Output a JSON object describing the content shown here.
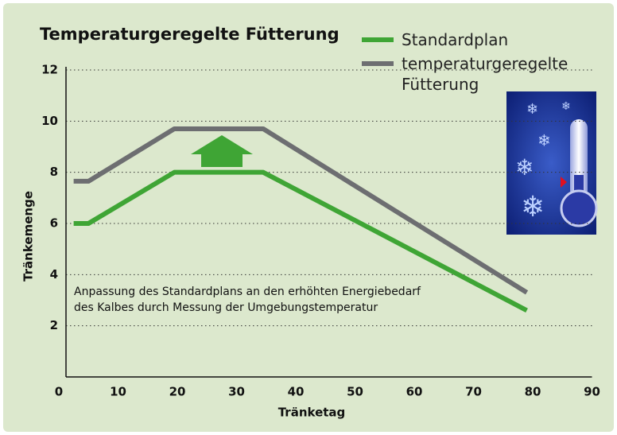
{
  "chart_data": {
    "type": "line",
    "title": "Temperaturgeregelte Fütterung",
    "x_label": "Tränketag",
    "y_label": "Tränkemenge",
    "annotation": [
      "Anpassung des Standardplans an den erhöhten Energiebedarf",
      "des Kalbes durch Messung der Umgebungstemperatur"
    ],
    "series": [
      {
        "name": "Standardplan",
        "color": "#3fa535",
        "x": [
          2.5,
          5,
          19.5,
          34.5,
          79
        ],
        "values": [
          6,
          6,
          8,
          8,
          2.6
        ]
      },
      {
        "name": "temperaturgeregelte Fütterung",
        "color": "#6d6e71",
        "x": [
          2.5,
          5,
          19.5,
          34.5,
          79
        ],
        "values": [
          7.65,
          7.65,
          9.7,
          9.7,
          3.3
        ]
      }
    ],
    "xlim": [
      0,
      90
    ],
    "xticks": [
      0,
      10,
      20,
      30,
      40,
      50,
      60,
      70,
      80,
      90
    ],
    "ylim": [
      0,
      12
    ],
    "yticks": [
      2,
      4,
      6,
      8,
      10,
      12
    ],
    "grid": true
  }
}
